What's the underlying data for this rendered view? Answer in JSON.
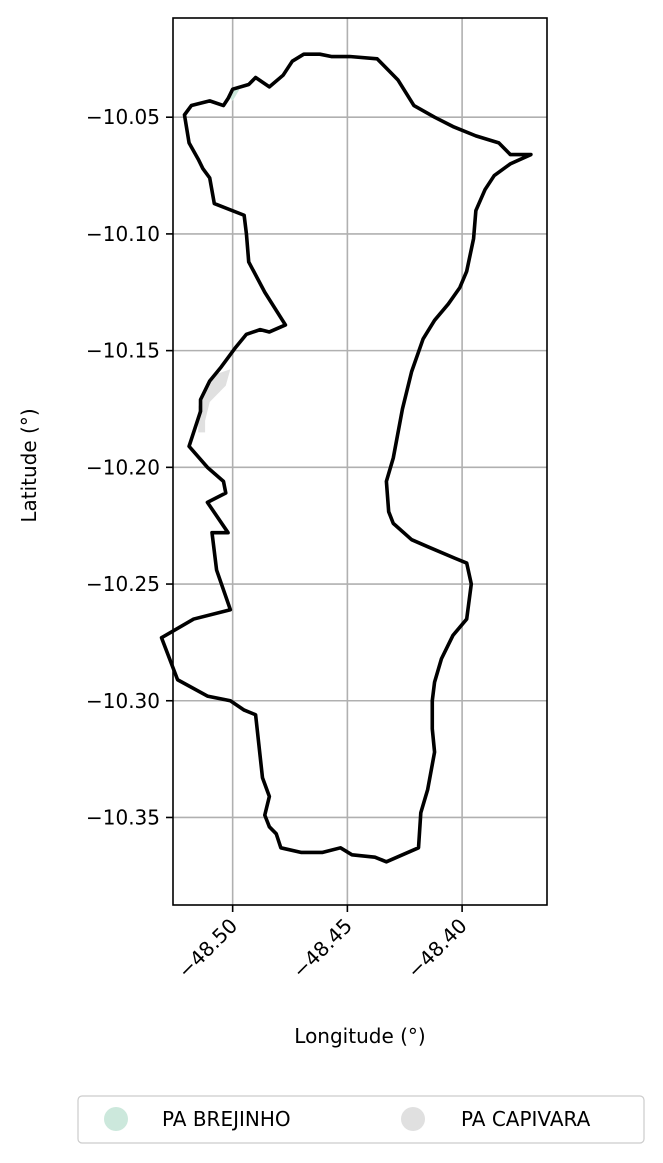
{
  "chart_data": {
    "type": "map",
    "title": "",
    "xlabel": "Longitude (°)",
    "ylabel": "Latitude (°)",
    "xlim": [
      -48.526,
      -48.363
    ],
    "ylim": [
      -10.3875,
      -10.0075
    ],
    "grid": true,
    "x_ticks": [
      {
        "value": -48.5,
        "label": "−48.50"
      },
      {
        "value": -48.45,
        "label": "−48.45"
      },
      {
        "value": -48.4,
        "label": "−48.40"
      }
    ],
    "y_ticks": [
      {
        "value": -10.05,
        "label": "−10.05"
      },
      {
        "value": -10.1,
        "label": "−10.10"
      },
      {
        "value": -10.15,
        "label": "−10.15"
      },
      {
        "value": -10.2,
        "label": "−10.20"
      },
      {
        "value": -10.25,
        "label": "−10.25"
      },
      {
        "value": -10.3,
        "label": "−10.30"
      },
      {
        "value": -10.35,
        "label": "−10.35"
      }
    ],
    "boundary": [
      [
        -48.5,
        -10.038
      ],
      [
        -48.493,
        -10.036
      ],
      [
        -48.49,
        -10.033
      ],
      [
        -48.484,
        -10.037
      ],
      [
        -48.478,
        -10.032
      ],
      [
        -48.474,
        -10.026
      ],
      [
        -48.469,
        -10.023
      ],
      [
        -48.462,
        -10.023
      ],
      [
        -48.457,
        -10.024
      ],
      [
        -48.449,
        -10.024
      ],
      [
        -48.437,
        -10.025
      ],
      [
        -48.432,
        -10.03
      ],
      [
        -48.428,
        -10.034
      ],
      [
        -48.421,
        -10.045
      ],
      [
        -48.412,
        -10.05
      ],
      [
        -48.404,
        -10.054
      ],
      [
        -48.394,
        -10.058
      ],
      [
        -48.384,
        -10.061
      ],
      [
        -48.379,
        -10.066
      ],
      [
        -48.37,
        -10.066
      ],
      [
        -48.379,
        -10.07
      ],
      [
        -48.386,
        -10.075
      ],
      [
        -48.39,
        -10.081
      ],
      [
        -48.394,
        -10.09
      ],
      [
        -48.395,
        -10.102
      ],
      [
        -48.398,
        -10.116
      ],
      [
        -48.401,
        -10.123
      ],
      [
        -48.406,
        -10.13
      ],
      [
        -48.412,
        -10.137
      ],
      [
        -48.417,
        -10.145
      ],
      [
        -48.422,
        -10.159
      ],
      [
        -48.426,
        -10.175
      ],
      [
        -48.43,
        -10.196
      ],
      [
        -48.433,
        -10.206
      ],
      [
        -48.432,
        -10.219
      ],
      [
        -48.43,
        -10.224
      ],
      [
        -48.422,
        -10.231
      ],
      [
        -48.415,
        -10.234
      ],
      [
        -48.403,
        -10.239
      ],
      [
        -48.398,
        -10.241
      ],
      [
        -48.396,
        -10.25
      ],
      [
        -48.398,
        -10.265
      ],
      [
        -48.404,
        -10.272
      ],
      [
        -48.409,
        -10.282
      ],
      [
        -48.412,
        -10.292
      ],
      [
        -48.413,
        -10.3
      ],
      [
        -48.413,
        -10.312
      ],
      [
        -48.412,
        -10.322
      ],
      [
        -48.415,
        -10.338
      ],
      [
        -48.418,
        -10.348
      ],
      [
        -48.419,
        -10.363
      ],
      [
        -48.426,
        -10.366
      ],
      [
        -48.433,
        -10.369
      ],
      [
        -48.438,
        -10.367
      ],
      [
        -48.448,
        -10.366
      ],
      [
        -48.453,
        -10.363
      ],
      [
        -48.461,
        -10.365
      ],
      [
        -48.47,
        -10.365
      ],
      [
        -48.479,
        -10.363
      ],
      [
        -48.481,
        -10.357
      ],
      [
        -48.484,
        -10.354
      ],
      [
        -48.486,
        -10.349
      ],
      [
        -48.484,
        -10.341
      ],
      [
        -48.487,
        -10.333
      ],
      [
        -48.49,
        -10.306
      ],
      [
        -48.495,
        -10.304
      ],
      [
        -48.501,
        -10.3
      ],
      [
        -48.511,
        -10.298
      ],
      [
        -48.524,
        -10.291
      ],
      [
        -48.531,
        -10.273
      ],
      [
        -48.517,
        -10.265
      ],
      [
        -48.501,
        -10.261
      ],
      [
        -48.507,
        -10.244
      ],
      [
        -48.509,
        -10.228
      ],
      [
        -48.502,
        -10.228
      ],
      [
        -48.511,
        -10.215
      ],
      [
        -48.503,
        -10.211
      ],
      [
        -48.504,
        -10.206
      ],
      [
        -48.511,
        -10.2
      ],
      [
        -48.519,
        -10.191
      ],
      [
        -48.514,
        -10.176
      ],
      [
        -48.514,
        -10.171
      ],
      [
        -48.51,
        -10.163
      ],
      [
        -48.505,
        -10.157
      ],
      [
        -48.499,
        -10.149
      ],
      [
        -48.494,
        -10.143
      ],
      [
        -48.488,
        -10.141
      ],
      [
        -48.484,
        -10.142
      ],
      [
        -48.477,
        -10.139
      ],
      [
        -48.486,
        -10.125
      ],
      [
        -48.493,
        -10.112
      ],
      [
        -48.494,
        -10.1
      ],
      [
        -48.495,
        -10.092
      ],
      [
        -48.508,
        -10.087
      ],
      [
        -48.51,
        -10.076
      ],
      [
        -48.513,
        -10.072
      ],
      [
        -48.515,
        -10.068
      ],
      [
        -48.519,
        -10.061
      ],
      [
        -48.521,
        -10.049
      ],
      [
        -48.518,
        -10.045
      ],
      [
        -48.51,
        -10.043
      ],
      [
        -48.504,
        -10.045
      ],
      [
        -48.502,
        -10.042
      ],
      [
        -48.5,
        -10.038
      ]
    ],
    "regions": [
      {
        "name": "PA BREJINHO",
        "color": "#cce8dc",
        "polygon": [
          [
            -48.5,
            -10.038
          ],
          [
            -48.497,
            -10.038
          ],
          [
            -48.5,
            -10.043
          ],
          [
            -48.502,
            -10.041
          ]
        ]
      },
      {
        "name": "PA CAPIVARA",
        "color": "#e0e0e0",
        "polygon": [
          [
            -48.507,
            -10.16
          ],
          [
            -48.501,
            -10.158
          ],
          [
            -48.503,
            -10.165
          ],
          [
            -48.51,
            -10.172
          ],
          [
            -48.512,
            -10.18
          ],
          [
            -48.512,
            -10.185
          ],
          [
            -48.515,
            -10.185
          ],
          [
            -48.515,
            -10.174
          ],
          [
            -48.511,
            -10.165
          ]
        ]
      }
    ],
    "legend": {
      "placement": "bottom-center",
      "entries": [
        {
          "label": "PA BREJINHO",
          "color": "#cce8dc"
        },
        {
          "label": "PA CAPIVARA",
          "color": "#e0e0e0"
        }
      ]
    },
    "colors": {
      "boundary": "#000000",
      "grid": "#b0b0b0",
      "frame": "#000000"
    }
  }
}
